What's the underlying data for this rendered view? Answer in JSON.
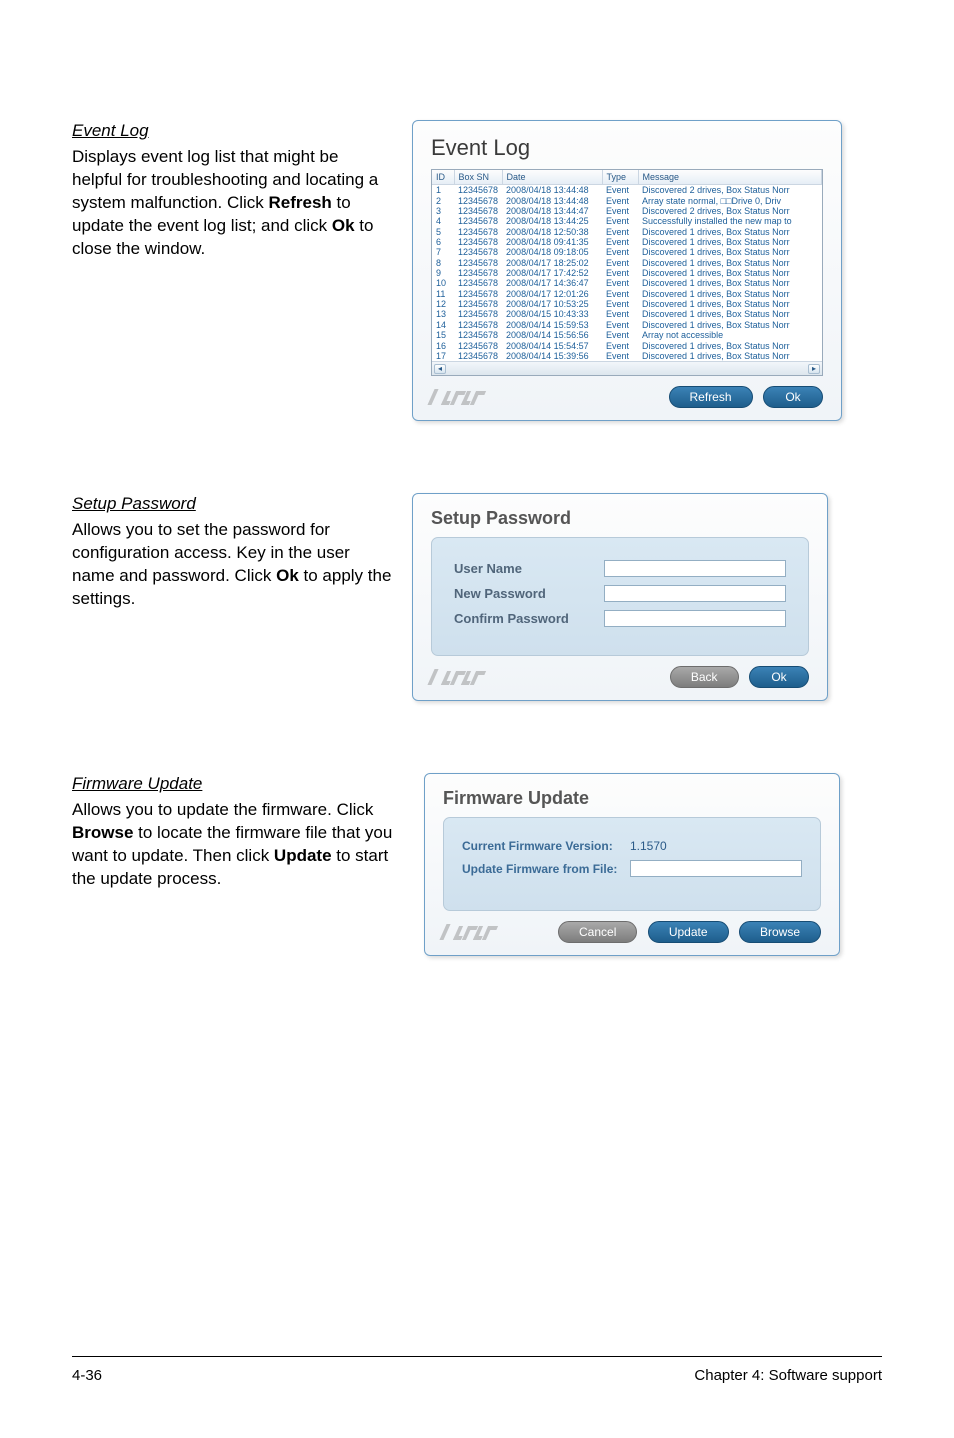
{
  "eventlog_section": {
    "title": "Event Log",
    "desc_parts": {
      "p1": "Displays event log list that might be helpful for troubleshooting and locating a system malfunction. Click ",
      "b1": "Refresh",
      "p2": " to update the event log list; and click ",
      "b2": "Ok",
      "p3": " to close the window."
    }
  },
  "eventlog_panel": {
    "title": "Event Log",
    "columns": {
      "c1": "ID",
      "c2": "Box SN",
      "c3": "Date",
      "c4": "Type",
      "c5": "Message"
    },
    "rows": [
      {
        "id": "1",
        "sn": "12345678",
        "date": "2008/04/18 13:44:48",
        "type": "Event",
        "msg": "Discovered 2 drives, Box Status Norr"
      },
      {
        "id": "2",
        "sn": "12345678",
        "date": "2008/04/18 13:44:48",
        "type": "Event",
        "msg": "Array state normal, □□Drive 0, Driv"
      },
      {
        "id": "3",
        "sn": "12345678",
        "date": "2008/04/18 13:44:47",
        "type": "Event",
        "msg": "Discovered 2 drives, Box Status Norr"
      },
      {
        "id": "4",
        "sn": "12345678",
        "date": "2008/04/18 13:44:25",
        "type": "Event",
        "msg": "Successfully installed the new map to"
      },
      {
        "id": "5",
        "sn": "12345678",
        "date": "2008/04/18 12:50:38",
        "type": "Event",
        "msg": "Discovered 1 drives, Box Status Norr"
      },
      {
        "id": "6",
        "sn": "12345678",
        "date": "2008/04/18 09:41:35",
        "type": "Event",
        "msg": "Discovered 1 drives, Box Status Norr"
      },
      {
        "id": "7",
        "sn": "12345678",
        "date": "2008/04/18 09:18:05",
        "type": "Event",
        "msg": "Discovered 1 drives, Box Status Norr"
      },
      {
        "id": "8",
        "sn": "12345678",
        "date": "2008/04/17 18:25:02",
        "type": "Event",
        "msg": "Discovered 1 drives, Box Status Norr"
      },
      {
        "id": "9",
        "sn": "12345678",
        "date": "2008/04/17 17:42:52",
        "type": "Event",
        "msg": "Discovered 1 drives, Box Status Norr"
      },
      {
        "id": "10",
        "sn": "12345678",
        "date": "2008/04/17 14:36:47",
        "type": "Event",
        "msg": "Discovered 1 drives, Box Status Norr"
      },
      {
        "id": "11",
        "sn": "12345678",
        "date": "2008/04/17 12:01:26",
        "type": "Event",
        "msg": "Discovered 1 drives, Box Status Norr"
      },
      {
        "id": "12",
        "sn": "12345678",
        "date": "2008/04/17 10:53:25",
        "type": "Event",
        "msg": "Discovered 1 drives, Box Status Norr"
      },
      {
        "id": "13",
        "sn": "12345678",
        "date": "2008/04/15 10:43:33",
        "type": "Event",
        "msg": "Discovered 1 drives, Box Status Norr"
      },
      {
        "id": "14",
        "sn": "12345678",
        "date": "2008/04/14 15:59:53",
        "type": "Event",
        "msg": "Discovered 1 drives, Box Status Norr"
      },
      {
        "id": "15",
        "sn": "12345678",
        "date": "2008/04/14 15:56:56",
        "type": "Event",
        "msg": "Array not accessible"
      },
      {
        "id": "16",
        "sn": "12345678",
        "date": "2008/04/14 15:54:57",
        "type": "Event",
        "msg": "Discovered 1 drives, Box Status Norr"
      },
      {
        "id": "17",
        "sn": "12345678",
        "date": "2008/04/14 15:39:56",
        "type": "Event",
        "msg": "Discovered 1 drives, Box Status Norr"
      }
    ],
    "buttons": {
      "refresh": "Refresh",
      "ok": "Ok"
    },
    "colors": {
      "header_text": "#2a5a88",
      "cell_text": "#1d5f9a",
      "btn_bg": "#2d73a8"
    }
  },
  "setuppw_section": {
    "title": "Setup Password",
    "desc_parts": {
      "p1": "Allows you to set the password for configuration access. Key in the user name and password. Click ",
      "b1": "Ok",
      "p2": " to apply the settings."
    }
  },
  "setuppw_panel": {
    "title": "Setup Password",
    "fields": {
      "user": "User Name",
      "newpw": "New Password",
      "confpw": "Confirm Password"
    },
    "values": {
      "user": "",
      "newpw": "",
      "confpw": ""
    },
    "buttons": {
      "back": "Back",
      "ok": "Ok"
    }
  },
  "fw_section": {
    "title": "Firmware Update",
    "desc_parts": {
      "p1": "Allows you to update the firmware. Click ",
      "b1": "Browse",
      "p2": " to locate the firmware file that you want to update. Then click ",
      "b2": "Update",
      "p3": " to start the update process."
    }
  },
  "fw_panel": {
    "title": "Firmware Update",
    "rows": {
      "cur_label": "Current Firmware Version:",
      "cur_value": "1.1570",
      "file_label": "Update Firmware from File:",
      "file_value": ""
    },
    "buttons": {
      "cancel": "Cancel",
      "update": "Update",
      "browse": "Browse"
    }
  },
  "footer": {
    "left": "4-36",
    "right": "Chapter 4: Software support"
  }
}
